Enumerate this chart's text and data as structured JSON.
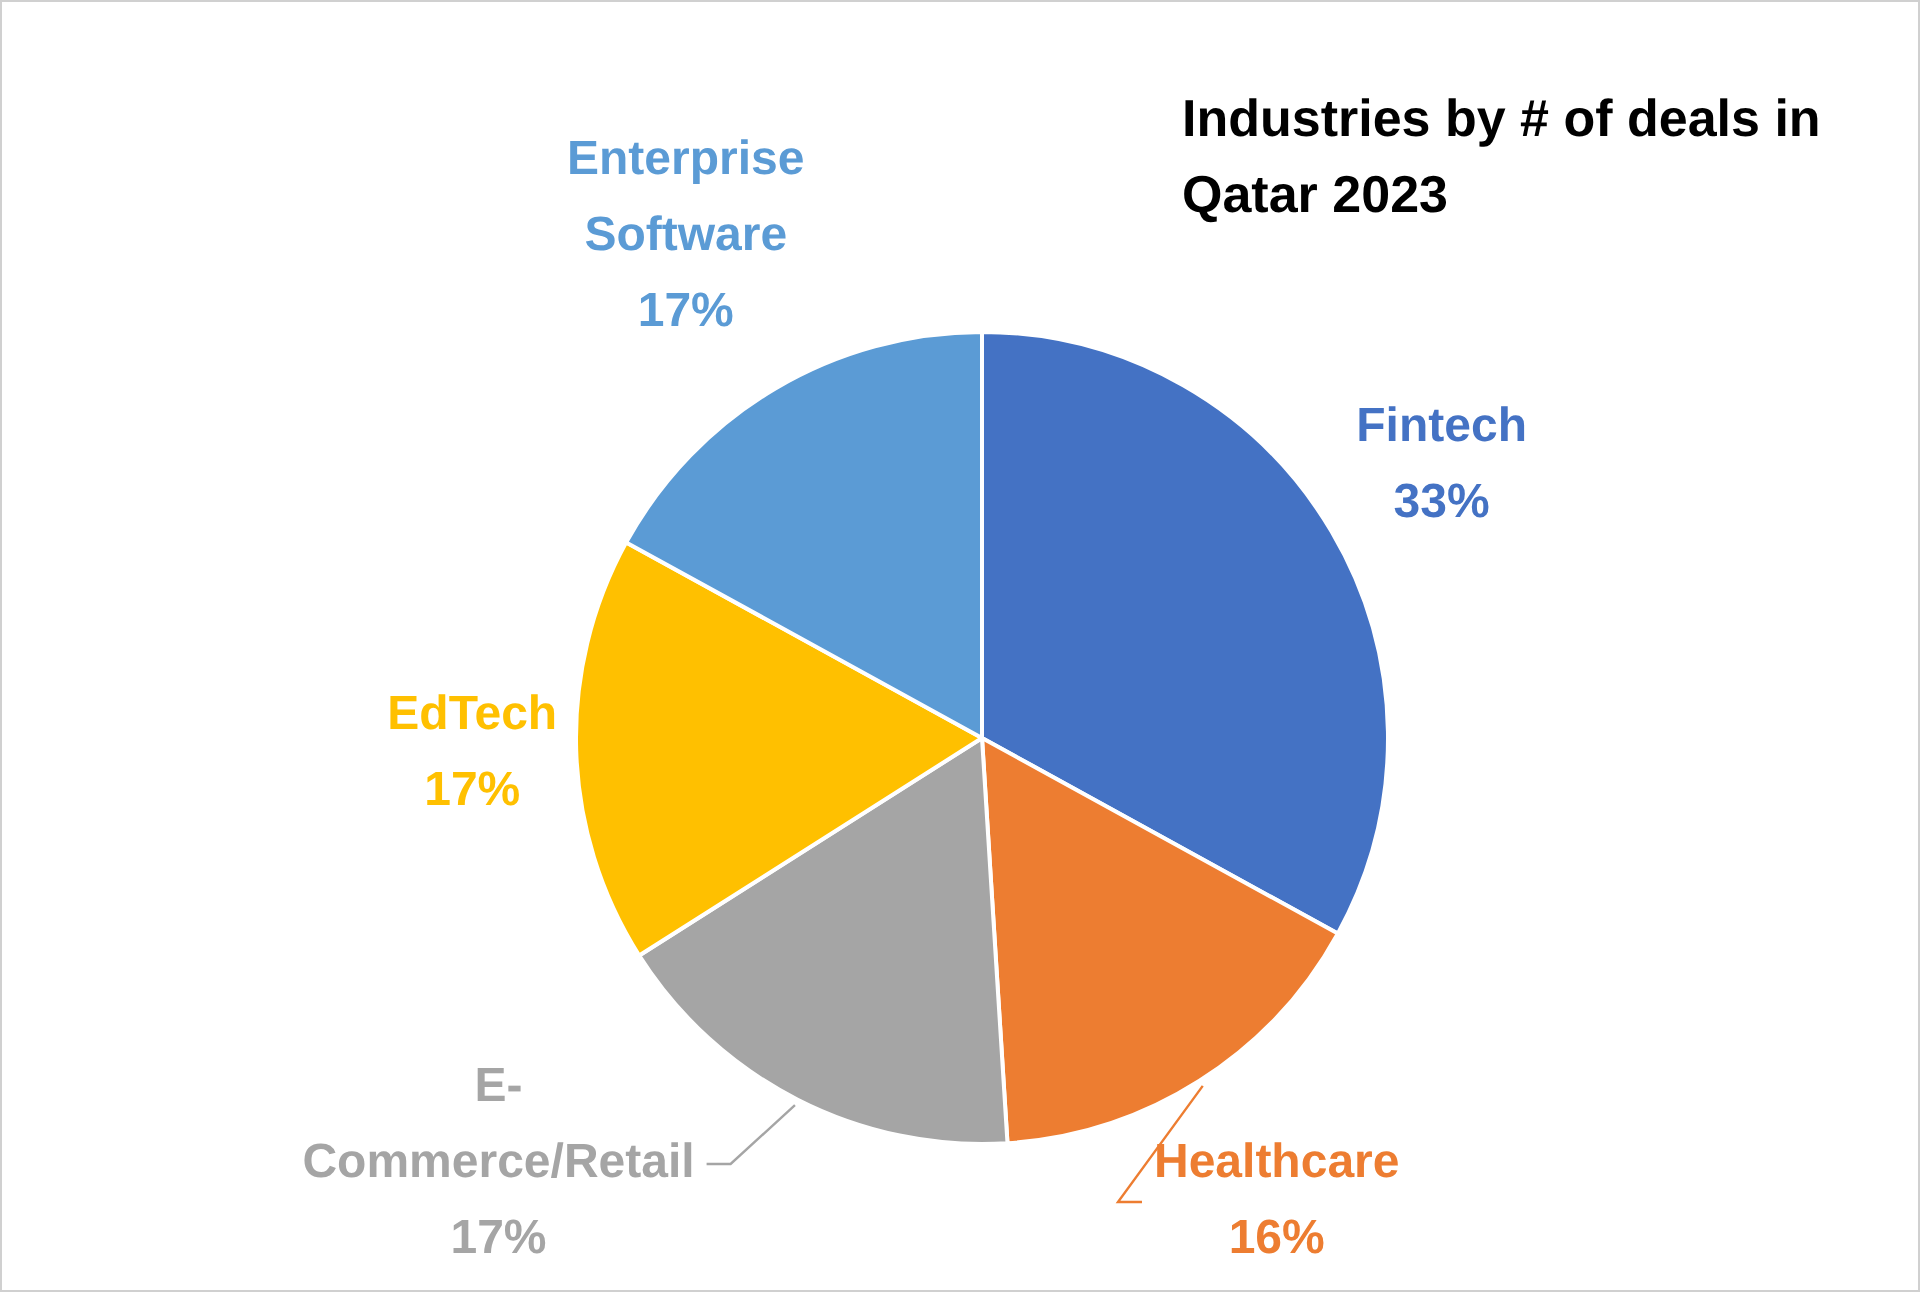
{
  "chart_data": {
    "type": "pie",
    "title": "Industries by # of deals in Qatar 2023",
    "categories": [
      "Fintech",
      "Healthcare",
      "E-Commerce/Retail",
      "EdTech",
      "Enterprise Software"
    ],
    "values": [
      33,
      16,
      17,
      17,
      17
    ],
    "colors": [
      "#4472c4",
      "#ed7d31",
      "#a5a5a5",
      "#ffc000",
      "#5b9bd5"
    ],
    "value_labels": [
      "33%",
      "16%",
      "17%",
      "17%",
      "17%"
    ],
    "legend": false
  }
}
